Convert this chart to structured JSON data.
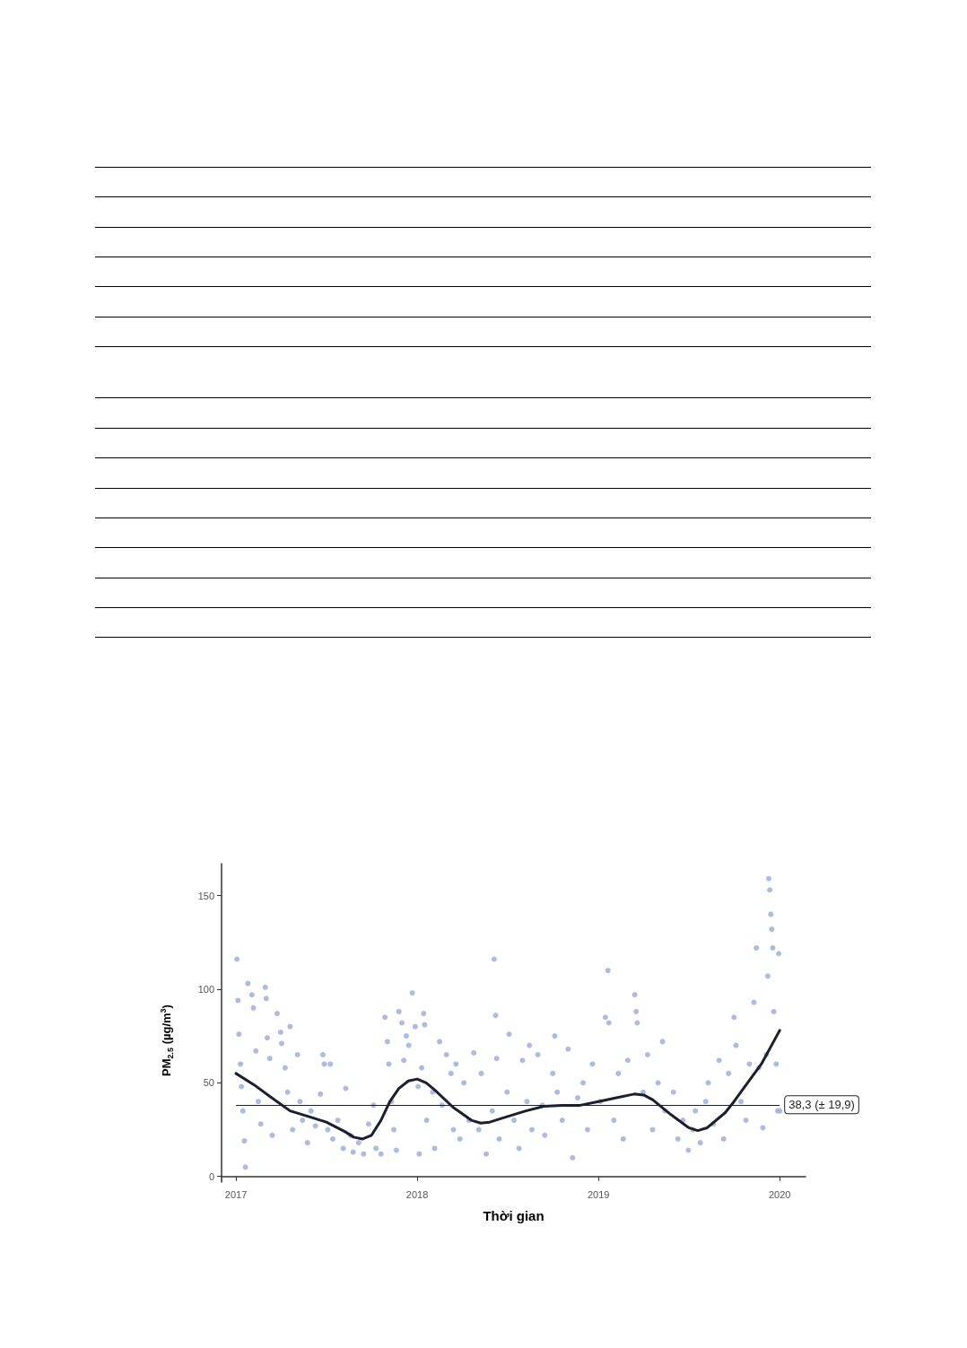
{
  "chart_data": {
    "type": "scatter",
    "xlabel": "Thời gian",
    "ylabel": "PM$_{2.5}$ (µg/m$^{3}$)",
    "xlim": [
      "2016-12-03",
      "2020-02-22"
    ],
    "xticks": [
      {
        "value": "2017-01-01",
        "label": "2017"
      },
      {
        "value": "2018-01-01",
        "label": "2018"
      },
      {
        "value": "2019-01-01",
        "label": "2019"
      },
      {
        "value": "2020-01-01",
        "label": "2020"
      }
    ],
    "ylim": [
      -3,
      167
    ],
    "yticks": [
      0,
      50,
      100,
      150
    ],
    "grid": false,
    "marker": "circle",
    "ref_lines": [
      {
        "axis": "y",
        "value": 38.3,
        "label": "38,3 (± 19,9)",
        "color": "#1b1f2e"
      }
    ],
    "series": [
      {
        "color": "#a3b5dd",
        "x": [
          "2017-01-03",
          "2017-01-05",
          "2017-01-07",
          "2017-01-10",
          "2017-01-12",
          "2017-01-15",
          "2017-01-18",
          "2017-01-20",
          "2017-01-25",
          "2017-02-02",
          "2017-02-05",
          "2017-02-10",
          "2017-02-15",
          "2017-02-20",
          "2017-03-01",
          "2017-03-03",
          "2017-03-05",
          "2017-03-10",
          "2017-03-15",
          "2017-03-25",
          "2017-04-01",
          "2017-04-03",
          "2017-04-10",
          "2017-04-15",
          "2017-04-20",
          "2017-04-25",
          "2017-05-05",
          "2017-05-10",
          "2017-05-15",
          "2017-05-25",
          "2017-06-01",
          "2017-06-10",
          "2017-06-20",
          "2017-06-25",
          "2017-06-28",
          "2017-07-05",
          "2017-07-10",
          "2017-07-15",
          "2017-07-25",
          "2017-08-05",
          "2017-08-10",
          "2017-08-20",
          "2017-08-25",
          "2017-09-05",
          "2017-09-15",
          "2017-09-25",
          "2017-10-05",
          "2017-10-10",
          "2017-10-20",
          "2017-10-28",
          "2017-11-02",
          "2017-11-05",
          "2017-11-10",
          "2017-11-15",
          "2017-11-20",
          "2017-11-25",
          "2017-12-01",
          "2017-12-05",
          "2017-12-10",
          "2017-12-15",
          "2017-12-22",
          "2017-12-28",
          "2018-01-03",
          "2018-01-05",
          "2018-01-10",
          "2018-01-14",
          "2018-01-16",
          "2018-01-20",
          "2018-02-01",
          "2018-02-05",
          "2018-02-15",
          "2018-02-20",
          "2018-03-01",
          "2018-03-10",
          "2018-03-15",
          "2018-03-20",
          "2018-03-28",
          "2018-04-05",
          "2018-04-15",
          "2018-04-25",
          "2018-05-05",
          "2018-05-10",
          "2018-05-20",
          "2018-06-01",
          "2018-06-05",
          "2018-06-08",
          "2018-06-10",
          "2018-06-15",
          "2018-07-01",
          "2018-07-05",
          "2018-07-15",
          "2018-07-25",
          "2018-08-01",
          "2018-08-10",
          "2018-08-15",
          "2018-08-20",
          "2018-09-01",
          "2018-09-10",
          "2018-09-15",
          "2018-10-01",
          "2018-10-05",
          "2018-10-10",
          "2018-10-20",
          "2018-11-01",
          "2018-11-10",
          "2018-11-20",
          "2018-12-01",
          "2018-12-10",
          "2018-12-20",
          "2019-01-05",
          "2019-01-15",
          "2019-01-20",
          "2019-01-22",
          "2019-02-01",
          "2019-02-10",
          "2019-02-20",
          "2019-03-01",
          "2019-03-15",
          "2019-03-18",
          "2019-03-20",
          "2019-04-01",
          "2019-04-10",
          "2019-04-20",
          "2019-05-01",
          "2019-05-10",
          "2019-05-15",
          "2019-06-01",
          "2019-06-10",
          "2019-06-20",
          "2019-07-01",
          "2019-07-10",
          "2019-07-15",
          "2019-07-25",
          "2019-08-05",
          "2019-08-10",
          "2019-08-20",
          "2019-09-01",
          "2019-09-10",
          "2019-09-20",
          "2019-10-01",
          "2019-10-05",
          "2019-10-15",
          "2019-10-25",
          "2019-11-01",
          "2019-11-10",
          "2019-11-15",
          "2019-11-20",
          "2019-11-28",
          "2019-12-05",
          "2019-12-08",
          "2019-12-10",
          "2019-12-12",
          "2019-12-14",
          "2019-12-16",
          "2019-12-18",
          "2019-12-20",
          "2019-12-25",
          "2019-12-28",
          "2019-12-30",
          "2020-01-01"
        ],
        "values": [
          116,
          94,
          76,
          60,
          48,
          35,
          19,
          5,
          103,
          97,
          90,
          67,
          40,
          28,
          101,
          95,
          74,
          63,
          22,
          87,
          77,
          71,
          58,
          45,
          80,
          25,
          65,
          40,
          30,
          18,
          35,
          27,
          44,
          65,
          60,
          25,
          60,
          20,
          30,
          15,
          47,
          22,
          13,
          18,
          12,
          28,
          38,
          15,
          12,
          85,
          72,
          60,
          40,
          25,
          14,
          88,
          82,
          62,
          75,
          70,
          98,
          80,
          48,
          12,
          58,
          87,
          81,
          30,
          45,
          15,
          72,
          38,
          65,
          55,
          25,
          60,
          20,
          50,
          30,
          66,
          25,
          55,
          12,
          35,
          116,
          86,
          63,
          20,
          45,
          76,
          30,
          15,
          62,
          40,
          70,
          25,
          65,
          38,
          22,
          55,
          75,
          45,
          30,
          68,
          10,
          42,
          50,
          25,
          60,
          40,
          85,
          110,
          82,
          30,
          55,
          20,
          62,
          97,
          88,
          82,
          45,
          65,
          25,
          50,
          72,
          35,
          45,
          20,
          30,
          14,
          25,
          35,
          18,
          40,
          50,
          28,
          62,
          20,
          55,
          85,
          70,
          40,
          30,
          60,
          93,
          122,
          58,
          26,
          65,
          107,
          159,
          153,
          140,
          132,
          122,
          88,
          60,
          35,
          119,
          35
        ]
      },
      {
        "type": "line",
        "color": "#1b1f2e",
        "marker": "none",
        "line_style": "solid",
        "x": [
          "2017-01-01",
          "2017-02-06",
          "2017-03-14",
          "2017-04-20",
          "2017-05-27",
          "2017-07-02",
          "2017-08-08",
          "2017-08-26",
          "2017-09-13",
          "2017-10-01",
          "2017-10-20",
          "2017-11-07",
          "2017-11-25",
          "2017-12-14",
          "2018-01-01",
          "2018-01-19",
          "2018-02-06",
          "2018-03-14",
          "2018-04-20",
          "2018-05-09",
          "2018-05-27",
          "2018-07-02",
          "2018-08-08",
          "2018-09-13",
          "2018-10-20",
          "2018-11-25",
          "2019-01-01",
          "2019-02-06",
          "2019-03-14",
          "2019-04-02",
          "2019-04-20",
          "2019-05-27",
          "2019-07-02",
          "2019-07-20",
          "2019-08-08",
          "2019-09-13",
          "2019-10-01",
          "2019-10-20",
          "2019-11-25",
          "2020-01-01"
        ],
        "values": [
          55,
          49,
          42,
          35,
          32,
          29,
          24,
          21,
          20,
          22,
          30,
          40,
          47,
          51,
          52,
          50,
          46,
          37,
          30,
          28.5,
          29,
          32,
          35,
          37.5,
          38,
          38,
          40,
          42,
          44,
          43.5,
          41,
          33,
          26,
          24.5,
          26,
          34,
          40,
          47,
          60,
          78
        ]
      }
    ]
  }
}
